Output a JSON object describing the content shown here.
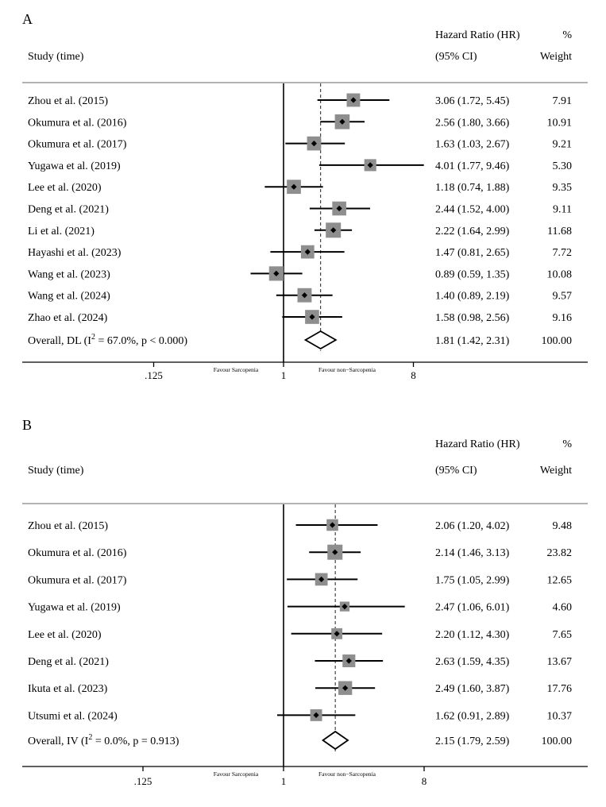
{
  "chart_data": [
    {
      "type": "forest",
      "panel_label": "A",
      "header": {
        "study": "Study (time)",
        "effect_line1": "Hazard Ratio (HR)",
        "effect_line2": "(95% CI)",
        "weight_line1": "%",
        "weight_line2": "Weight"
      },
      "x_scale": "log",
      "xlim": [
        0.0625,
        16
      ],
      "x_ticks": [
        {
          "value": 0.125,
          "label": ".125"
        },
        {
          "value": 1,
          "label": "1"
        },
        {
          "value": 8,
          "label": "8"
        }
      ],
      "favour_left": "Favour Sarcopenia",
      "favour_right": "Favour non−Sarcopenia",
      "studies": [
        {
          "label": "Zhou et al. (2015)",
          "hr": 3.06,
          "lo": 1.72,
          "hi": 5.45,
          "ci_text": "3.06 (1.72, 5.45)",
          "weight": 7.91,
          "weight_text": "7.91"
        },
        {
          "label": "Okumura et al. (2016)",
          "hr": 2.56,
          "lo": 1.8,
          "hi": 3.66,
          "ci_text": "2.56 (1.80, 3.66)",
          "weight": 10.91,
          "weight_text": "10.91"
        },
        {
          "label": "Okumura et al. (2017)",
          "hr": 1.63,
          "lo": 1.03,
          "hi": 2.67,
          "ci_text": "1.63 (1.03, 2.67)",
          "weight": 9.21,
          "weight_text": "9.21"
        },
        {
          "label": "Yugawa et al. (2019)",
          "hr": 4.01,
          "lo": 1.77,
          "hi": 9.46,
          "ci_text": "4.01 (1.77, 9.46)",
          "weight": 5.3,
          "weight_text": "5.30"
        },
        {
          "label": "Lee et al. (2020)",
          "hr": 1.18,
          "lo": 0.74,
          "hi": 1.88,
          "ci_text": "1.18 (0.74, 1.88)",
          "weight": 9.35,
          "weight_text": "9.35"
        },
        {
          "label": "Deng et al. (2021)",
          "hr": 2.44,
          "lo": 1.52,
          "hi": 4.0,
          "ci_text": "2.44 (1.52, 4.00)",
          "weight": 9.11,
          "weight_text": "9.11"
        },
        {
          "label": "Li et al. (2021)",
          "hr": 2.22,
          "lo": 1.64,
          "hi": 2.99,
          "ci_text": "2.22 (1.64, 2.99)",
          "weight": 11.68,
          "weight_text": "11.68"
        },
        {
          "label": "Hayashi et al. (2023)",
          "hr": 1.47,
          "lo": 0.81,
          "hi": 2.65,
          "ci_text": "1.47 (0.81, 2.65)",
          "weight": 7.72,
          "weight_text": "7.72"
        },
        {
          "label": "Wang et al. (2023)",
          "hr": 0.89,
          "lo": 0.59,
          "hi": 1.35,
          "ci_text": "0.89 (0.59, 1.35)",
          "weight": 10.08,
          "weight_text": "10.08"
        },
        {
          "label": "Wang et al. (2024)",
          "hr": 1.4,
          "lo": 0.89,
          "hi": 2.19,
          "ci_text": "1.40 (0.89, 2.19)",
          "weight": 9.57,
          "weight_text": "9.57"
        },
        {
          "label": "Zhao et al. (2024)",
          "hr": 1.58,
          "lo": 0.98,
          "hi": 2.56,
          "ci_text": "1.58 (0.98, 2.56)",
          "weight": 9.16,
          "weight_text": "9.16"
        }
      ],
      "overall": {
        "label_pre": "Overall, DL (I",
        "label_sup": "2",
        "label_post": " = 67.0%, p < 0.000)",
        "hr": 1.81,
        "lo": 1.42,
        "hi": 2.31,
        "ci_text": "1.81 (1.42, 2.31)",
        "weight_text": "100.00"
      }
    },
    {
      "type": "forest",
      "panel_label": "B",
      "header": {
        "study": "Study (time)",
        "effect_line1": "Hazard Ratio (HR)",
        "effect_line2": "(95% CI)",
        "weight_line1": "%",
        "weight_line2": "Weight"
      },
      "x_scale": "log",
      "xlim": [
        0.0625,
        16
      ],
      "x_ticks": [
        {
          "value": 0.125,
          "label": ".125"
        },
        {
          "value": 1,
          "label": "1"
        },
        {
          "value": 8,
          "label": "8"
        }
      ],
      "favour_left": "Favour Sarcopenia",
      "favour_right": "Favour non−Sarcopenia",
      "studies": [
        {
          "label": "Zhou et al. (2015)",
          "hr": 2.06,
          "lo": 1.2,
          "hi": 4.02,
          "ci_text": "2.06 (1.20, 4.02)",
          "weight": 9.48,
          "weight_text": "9.48"
        },
        {
          "label": "Okumura et al. (2016)",
          "hr": 2.14,
          "lo": 1.46,
          "hi": 3.13,
          "ci_text": "2.14 (1.46, 3.13)",
          "weight": 23.82,
          "weight_text": "23.82"
        },
        {
          "label": "Okumura et al. (2017)",
          "hr": 1.75,
          "lo": 1.05,
          "hi": 2.99,
          "ci_text": "1.75 (1.05, 2.99)",
          "weight": 12.65,
          "weight_text": "12.65"
        },
        {
          "label": "Yugawa et al. (2019)",
          "hr": 2.47,
          "lo": 1.06,
          "hi": 6.01,
          "ci_text": "2.47 (1.06, 6.01)",
          "weight": 4.6,
          "weight_text": "4.60"
        },
        {
          "label": "Lee et al. (2020)",
          "hr": 2.2,
          "lo": 1.12,
          "hi": 4.3,
          "ci_text": "2.20 (1.12, 4.30)",
          "weight": 7.65,
          "weight_text": "7.65"
        },
        {
          "label": "Deng et al. (2021)",
          "hr": 2.63,
          "lo": 1.59,
          "hi": 4.35,
          "ci_text": "2.63 (1.59, 4.35)",
          "weight": 13.67,
          "weight_text": "13.67"
        },
        {
          "label": "Ikuta et al. (2023)",
          "hr": 2.49,
          "lo": 1.6,
          "hi": 3.87,
          "ci_text": "2.49 (1.60, 3.87)",
          "weight": 17.76,
          "weight_text": "17.76"
        },
        {
          "label": "Utsumi et al. (2024)",
          "hr": 1.62,
          "lo": 0.91,
          "hi": 2.89,
          "ci_text": "1.62 (0.91, 2.89)",
          "weight": 10.37,
          "weight_text": "10.37"
        }
      ],
      "overall": {
        "label_pre": "Overall, IV (I",
        "label_sup": "2",
        "label_post": " = 0.0%, p = 0.913)",
        "hr": 2.15,
        "lo": 1.79,
        "hi": 2.59,
        "ci_text": "2.15 (1.79, 2.59)",
        "weight_text": "100.00"
      }
    }
  ]
}
